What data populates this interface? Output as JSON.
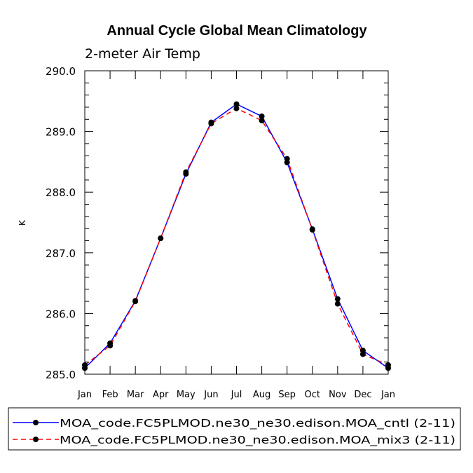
{
  "chart_data": {
    "type": "line",
    "title": "Annual Cycle Global Mean Climatology",
    "subtitle": "2-meter Air Temp",
    "xlabel": "",
    "ylabel": "K",
    "ylim": [
      285.0,
      290.0
    ],
    "yticks": [
      "285.0",
      "286.0",
      "287.0",
      "288.0",
      "289.0",
      "290.0"
    ],
    "categories": [
      "Jan",
      "Feb",
      "Mar",
      "Apr",
      "May",
      "Jun",
      "Jul",
      "Aug",
      "Sep",
      "Oct",
      "Nov",
      "Dec",
      "Jan"
    ],
    "series": [
      {
        "name": "MOA_code.FC5PLMOD.ne30_ne30.edison.MOA_cntl (2-11)",
        "color": "#0000ff",
        "style": "solid",
        "marker": "circle",
        "values": [
          285.1,
          285.51,
          286.21,
          287.24,
          288.3,
          289.15,
          289.45,
          289.25,
          288.49,
          287.39,
          286.24,
          285.39,
          285.1
        ]
      },
      {
        "name": "MOA_code.FC5PLMOD.ne30_ne30.edison.MOA_mix3 (2-11)",
        "color": "#ff0000",
        "style": "dashed",
        "marker": "circle",
        "values": [
          285.15,
          285.47,
          286.2,
          287.24,
          288.33,
          289.13,
          289.38,
          289.18,
          288.55,
          287.38,
          286.16,
          285.33,
          285.15
        ]
      }
    ],
    "legend_position": "bottom"
  }
}
